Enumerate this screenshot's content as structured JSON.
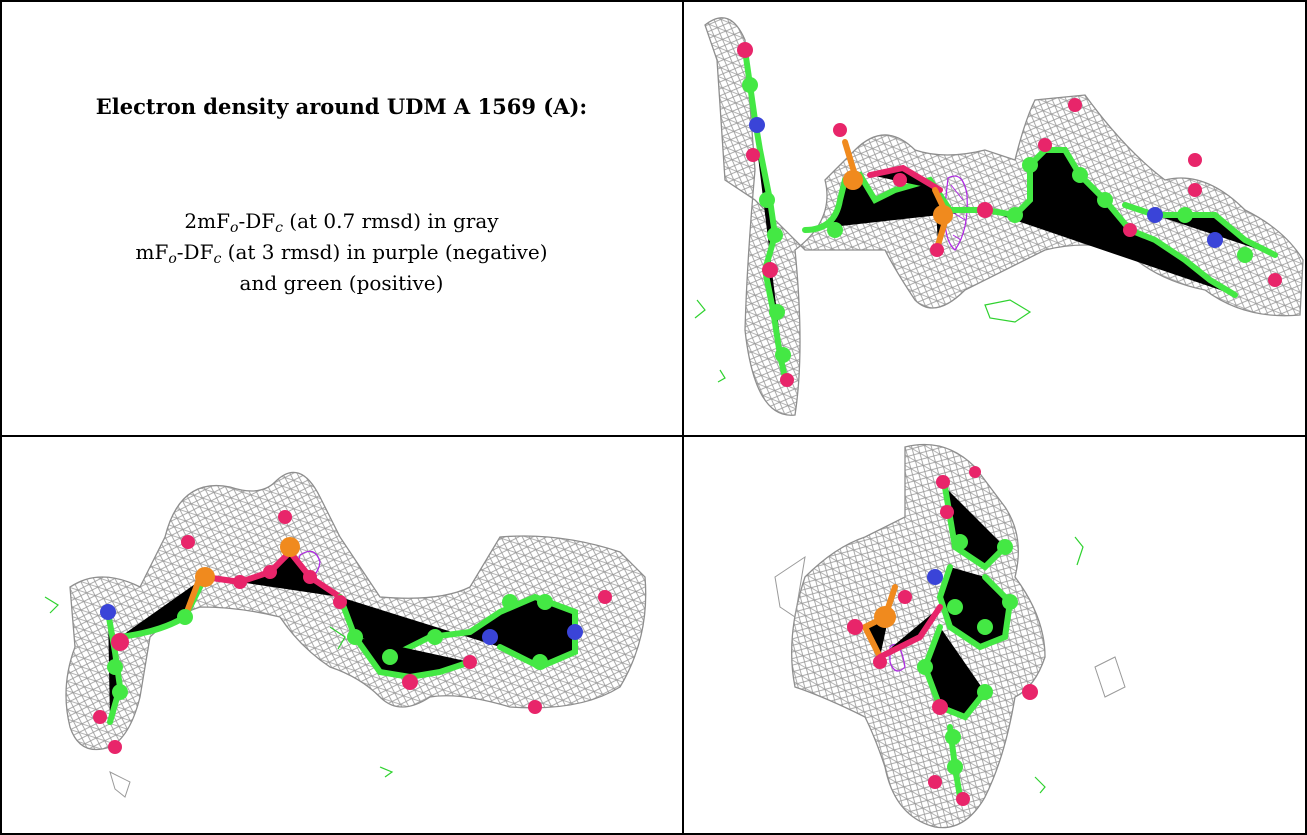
{
  "caption": {
    "title": "Electron density around UDM A 1569 (A):",
    "line1": {
      "a": "2mF",
      "sub1": "o",
      "b": "-DF",
      "sub2": "c",
      "c": " (at 0.7 rmsd) in gray"
    },
    "line2": {
      "a": "mF",
      "sub1": "o",
      "b": "-DF",
      "sub2": "c",
      "c": " (at 3 rmsd) in purple (negative)"
    },
    "line3": "and green (positive)"
  },
  "colors": {
    "mesh_2fofc": "#9a9a9a",
    "mesh_negative": "#b026e6",
    "mesh_positive": "#2fd22f",
    "carbon": "#44e844",
    "oxygen": "#e8256a",
    "nitrogen": "#3a44d8",
    "phosphorus": "#f08a1e",
    "border": "#000000"
  },
  "panels": [
    {
      "id": "top-right",
      "view": "density-view-1"
    },
    {
      "id": "bottom-left",
      "view": "density-view-2"
    },
    {
      "id": "bottom-right",
      "view": "density-view-3"
    }
  ]
}
